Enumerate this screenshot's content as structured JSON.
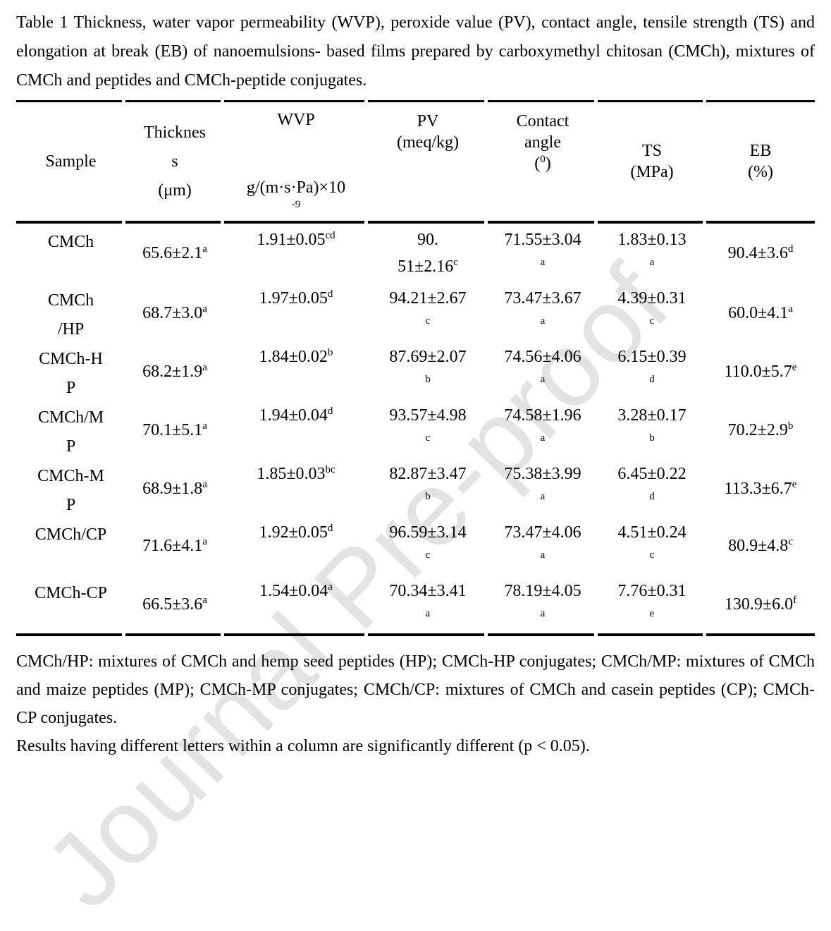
{
  "watermark": "Journal Pre-proof",
  "caption": "Table 1 Thickness, water vapor permeability (WVP), peroxide value (PV), contact angle, tensile strength (TS) and elongation at break (EB) of nanoemulsions- based films prepared by carboxymethyl chitosan (CMCh), mixtures of CMCh and peptides and CMCh-peptide conjugates.",
  "table": {
    "headers": {
      "sample": "Sample",
      "thickness_lines": [
        "Thicknes",
        "s",
        "(μm)"
      ],
      "wvp_title": "WVP",
      "wvp_unit": "g/(m·s·Pa)×10",
      "wvp_exp": "-9",
      "pv_title": "PV",
      "pv_unit": "(meq/kg)",
      "contact_line1": "Contact",
      "contact_line2": "angle",
      "contact_paren_open": "(",
      "contact_sup": "0",
      "contact_paren_close": ")",
      "ts_title": "TS",
      "ts_unit": "(MPa)",
      "eb_title": "EB",
      "eb_unit": "(%)"
    },
    "rows": [
      {
        "sample_lines": [
          "CMCh",
          ""
        ],
        "thickness": {
          "v": "65.6±2.1",
          "sup": "a"
        },
        "wvp": {
          "v": "1.91±0.05",
          "sup": "cd"
        },
        "pv": {
          "l1": "90.",
          "l2": "51±2.16",
          "sup": "c"
        },
        "contact": {
          "v": "71.55±3.04",
          "sup": "a"
        },
        "ts": {
          "v": "1.83±0.13",
          "sup": "a"
        },
        "eb": {
          "v": "90.4±3.6",
          "sup": "d"
        }
      },
      {
        "sample_lines": [
          "CMCh",
          "/HP"
        ],
        "thickness": {
          "v": "68.7±3.0",
          "sup": "a"
        },
        "wvp": {
          "v": "1.97±0.05",
          "sup": "d"
        },
        "pv": {
          "l1": "94.21±2.67",
          "l2": "",
          "sup": "c"
        },
        "contact": {
          "v": "73.47±3.67",
          "sup": "a"
        },
        "ts": {
          "v": "4.39±0.31",
          "sup": "c"
        },
        "eb": {
          "v": "60.0±4.1",
          "sup": "a"
        }
      },
      {
        "sample_lines": [
          "CMCh-H",
          "P"
        ],
        "thickness": {
          "v": "68.2±1.9",
          "sup": "a"
        },
        "wvp": {
          "v": "1.84±0.02",
          "sup": "b"
        },
        "pv": {
          "l1": "87.69±2.07",
          "l2": "",
          "sup": "b"
        },
        "contact": {
          "v": "74.56±4.06",
          "sup": "a"
        },
        "ts": {
          "v": "6.15±0.39",
          "sup": "d"
        },
        "eb": {
          "v": "110.0±5.7",
          "sup": "e"
        }
      },
      {
        "sample_lines": [
          "CMCh/M",
          "P"
        ],
        "thickness": {
          "v": "70.1±5.1",
          "sup": "a"
        },
        "wvp": {
          "v": "1.94±0.04",
          "sup": "d"
        },
        "pv": {
          "l1": "93.57±4.98",
          "l2": "",
          "sup": "c"
        },
        "contact": {
          "v": "74.58±1.96",
          "sup": "a"
        },
        "ts": {
          "v": "3.28±0.17",
          "sup": "b"
        },
        "eb": {
          "v": "70.2±2.9",
          "sup": "b"
        }
      },
      {
        "sample_lines": [
          "CMCh-M",
          "P"
        ],
        "thickness": {
          "v": "68.9±1.8",
          "sup": "a"
        },
        "wvp": {
          "v": "1.85±0.03",
          "sup": "bc"
        },
        "pv": {
          "l1": "82.87±3.47",
          "l2": "",
          "sup": "b"
        },
        "contact": {
          "v": "75.38±3.99",
          "sup": "a"
        },
        "ts": {
          "v": "6.45±0.22",
          "sup": "d"
        },
        "eb": {
          "v": "113.3±6.7",
          "sup": "e"
        }
      },
      {
        "sample_lines": [
          "CMCh/CP",
          ""
        ],
        "thickness": {
          "v": "71.6±4.1",
          "sup": "a"
        },
        "wvp": {
          "v": "1.92±0.05",
          "sup": "d"
        },
        "pv": {
          "l1": "96.59±3.14",
          "l2": "",
          "sup": "c"
        },
        "contact": {
          "v": "73.47±4.06",
          "sup": "a"
        },
        "ts": {
          "v": "4.51±0.24",
          "sup": "c"
        },
        "eb": {
          "v": "80.9±4.8",
          "sup": "c"
        }
      },
      {
        "sample_lines": [
          "CMCh-CP",
          ""
        ],
        "thickness": {
          "v": "66.5±3.6",
          "sup": "a"
        },
        "wvp": {
          "v": "1.54±0.04",
          "sup": "a"
        },
        "pv": {
          "l1": "70.34±3.41",
          "l2": "",
          "sup": "a"
        },
        "contact": {
          "v": "78.19±4.05",
          "sup": "a"
        },
        "ts": {
          "v": "7.76±0.31",
          "sup": "e"
        },
        "eb": {
          "v": "130.9±6.0",
          "sup": "f"
        }
      }
    ]
  },
  "footnotes": {
    "definitions": "CMCh/HP: mixtures of CMCh and hemp seed peptides (HP); CMCh-HP conjugates; CMCh/MP: mixtures of CMCh and maize peptides (MP); CMCh-MP conjugates; CMCh/CP: mixtures of CMCh and casein peptides (CP); CMCh-CP conjugates.",
    "significance": "Results having different letters within a column are significantly different (p < 0.05)."
  }
}
